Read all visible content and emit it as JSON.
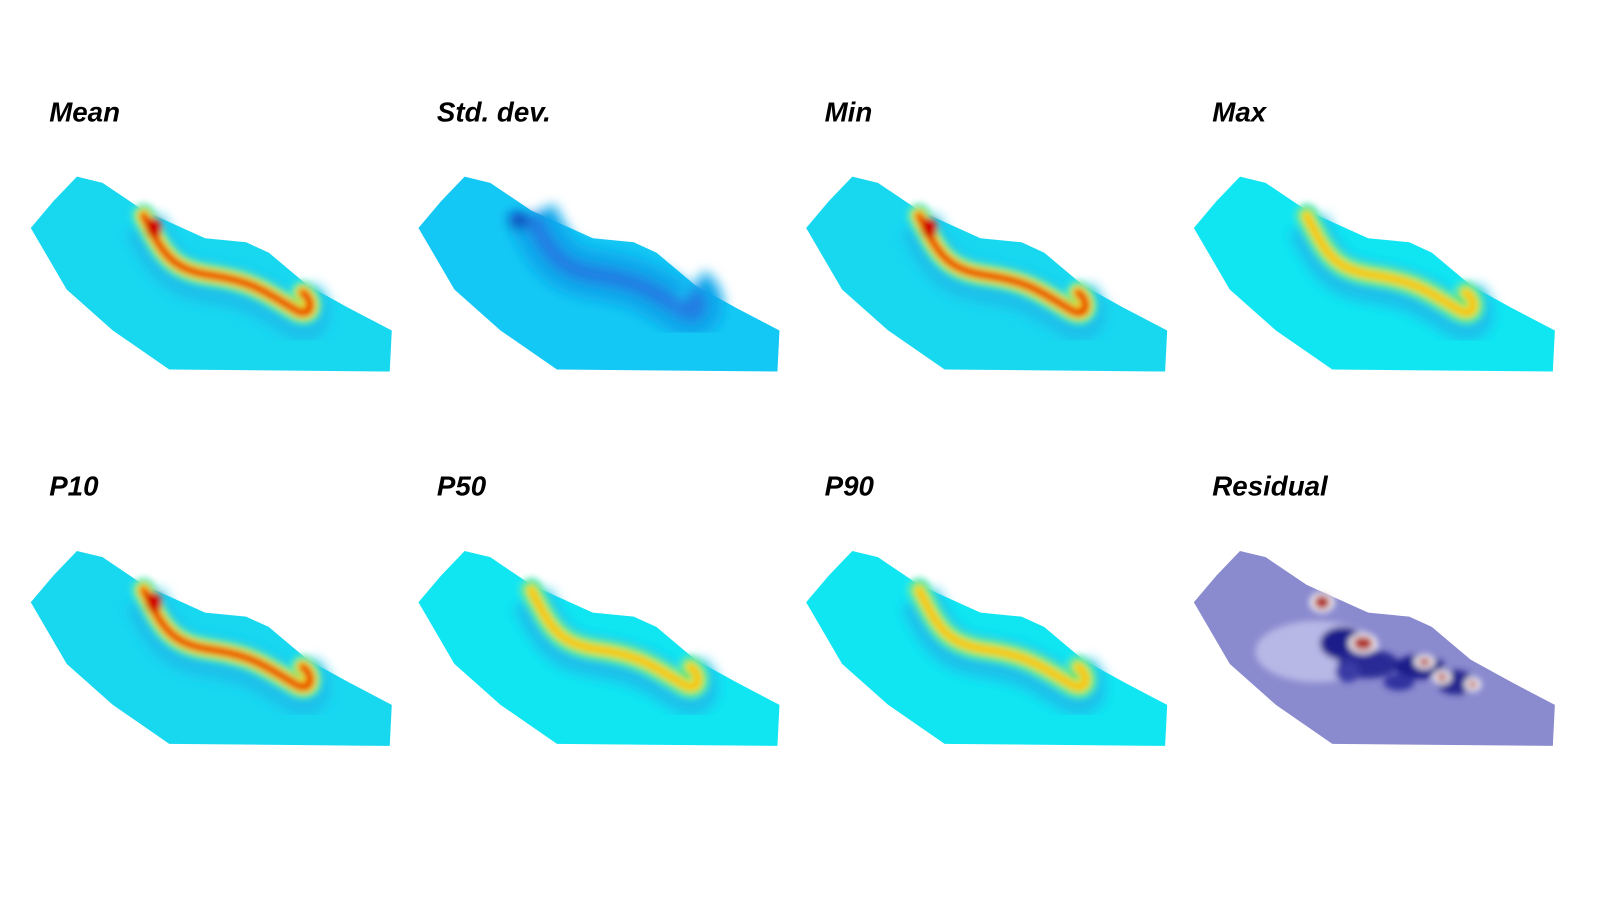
{
  "panels": [
    {
      "title": "Mean"
    },
    {
      "title": "Std. dev."
    },
    {
      "title": "Min"
    },
    {
      "title": "Max"
    },
    {
      "title": "P10"
    },
    {
      "title": "P50"
    },
    {
      "title": "P90"
    },
    {
      "title": "Residual"
    }
  ]
}
